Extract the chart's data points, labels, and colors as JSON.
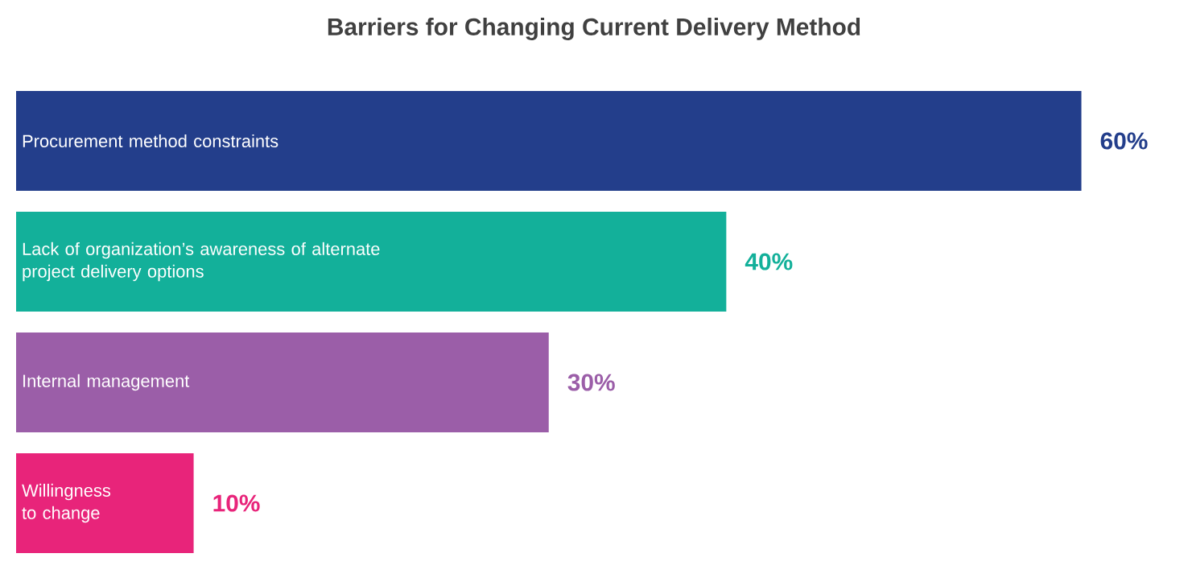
{
  "chart_data": {
    "type": "bar",
    "orientation": "horizontal",
    "title": "Barriers for Changing Current Delivery Method",
    "categories": [
      "Procurement method constraints",
      "Lack of organization’s awareness of alternate project delivery options",
      "Internal management",
      "Willingness to change"
    ],
    "values": [
      60,
      40,
      30,
      10
    ],
    "value_labels": [
      "60%",
      "40%",
      "30%",
      "10%"
    ],
    "colors": [
      "#233e8b",
      "#13b09a",
      "#9b5ea8",
      "#e8247a"
    ],
    "marker": "none"
  }
}
